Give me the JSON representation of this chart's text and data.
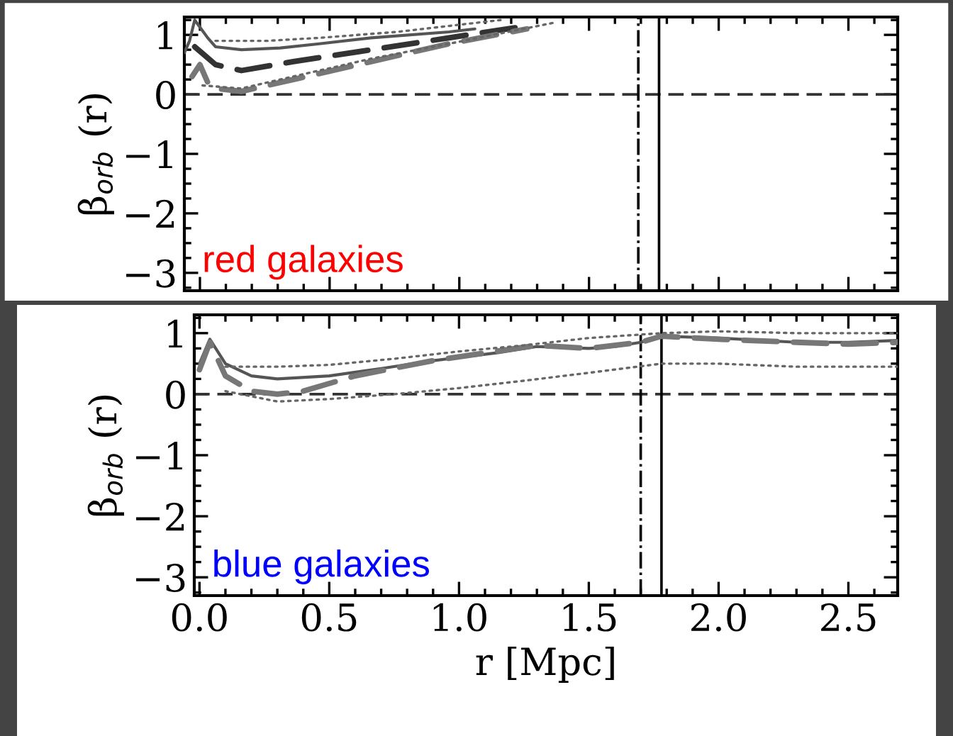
{
  "chart_data": [
    {
      "type": "line",
      "ylabel": "β$_{orb}$ (r)",
      "xlim": [
        -0.06,
        2.69
      ],
      "ylim": [
        -3.3,
        1.3
      ],
      "yticks": [
        -3,
        -2,
        -1,
        0,
        1
      ],
      "xticks": [
        0.0,
        0.5,
        1.0,
        1.5,
        2.0,
        2.5
      ],
      "tick_labels": "y",
      "grid": false,
      "legend": false,
      "annotations": [
        "red galaxies"
      ],
      "ref_lines": [
        {
          "axis": "y",
          "value": 0,
          "label": null,
          "color": "#333333",
          "line_style": "dashed"
        },
        {
          "axis": "x",
          "value": 1.69,
          "label": null,
          "color": "#000000",
          "line_style": "dashdot"
        },
        {
          "axis": "x",
          "value": 1.77,
          "label": null,
          "color": "#000000",
          "line_style": "solid"
        }
      ],
      "series": [
        {
          "color": "#555555",
          "line_style": "solid",
          "x": [
            -0.06,
            -0.04,
            -0.02,
            0.03,
            0.06,
            0.16,
            0.31,
            0.46,
            0.66,
            0.96,
            1.06
          ],
          "values": [
            0.7,
            0.9,
            1.25,
            0.95,
            0.8,
            0.75,
            0.78,
            0.85,
            0.95,
            1.05,
            1.1
          ]
        },
        {
          "color": "#333333",
          "line_style": "dashed",
          "x": [
            -0.02,
            0.02,
            0.06,
            0.16,
            0.36,
            0.66,
            0.96,
            1.26
          ],
          "values": [
            0.8,
            0.65,
            0.5,
            0.4,
            0.55,
            0.75,
            0.95,
            1.15
          ]
        },
        {
          "color": "#777777",
          "line_style": "dashed",
          "x": [
            -0.03,
            0.0,
            0.03,
            0.06,
            0.16,
            0.36,
            0.66,
            0.96,
            1.26
          ],
          "values": [
            0.3,
            0.5,
            0.2,
            0.1,
            0.05,
            0.25,
            0.55,
            0.85,
            1.1
          ]
        },
        {
          "color": "#666666",
          "line_style": "dotted",
          "x": [
            0.06,
            0.26,
            0.46,
            0.76,
            0.96,
            1.16
          ],
          "values": [
            0.9,
            0.9,
            0.95,
            1.05,
            1.15,
            1.25
          ]
        },
        {
          "color": "#666666",
          "line_style": "dotted",
          "x": [
            0.01,
            0.16,
            0.36,
            0.66,
            0.96,
            1.36
          ],
          "values": [
            0.15,
            0.1,
            0.3,
            0.6,
            0.85,
            1.2
          ]
        }
      ]
    },
    {
      "type": "line",
      "ylabel": "β$_{orb}$ (r)",
      "xlabel": "r [Mpc]",
      "xlim": [
        -0.02,
        2.69
      ],
      "ylim": [
        -3.3,
        1.3
      ],
      "yticks": [
        -3,
        -2,
        -1,
        0,
        1
      ],
      "xticks": [
        {
          "value": 0.0,
          "label": "0.0"
        },
        {
          "value": 0.5,
          "label": "0.5"
        },
        {
          "value": 1.0,
          "label": "1.0"
        },
        {
          "value": 1.5,
          "label": "1.5"
        },
        {
          "value": 2.0,
          "label": "2.0"
        },
        {
          "value": 2.5,
          "label": "2.5"
        }
      ],
      "grid": false,
      "legend": false,
      "annotations": [
        "blue galaxies"
      ],
      "ref_lines": [
        {
          "axis": "y",
          "value": 0,
          "label": null,
          "color": "#333333",
          "line_style": "dashed"
        },
        {
          "axis": "x",
          "value": 1.7,
          "label": null,
          "color": "#000000",
          "line_style": "dashdot"
        },
        {
          "axis": "x",
          "value": 1.78,
          "label": null,
          "color": "#000000",
          "line_style": "solid"
        }
      ],
      "series": [
        {
          "color": "#555555",
          "line_style": "solid",
          "x": [
            0.0,
            0.02,
            0.04,
            0.07,
            0.1,
            0.2,
            0.3,
            0.5,
            0.7,
            0.9,
            1.0,
            1.15,
            1.3,
            1.5,
            1.6,
            1.7,
            1.78,
            2.0,
            2.3,
            2.5,
            2.69
          ],
          "values": [
            0.5,
            0.7,
            0.9,
            0.7,
            0.5,
            0.3,
            0.25,
            0.3,
            0.42,
            0.55,
            0.6,
            0.68,
            0.78,
            0.75,
            0.78,
            0.85,
            0.95,
            0.92,
            0.85,
            0.85,
            0.88
          ]
        },
        {
          "color": "#777777",
          "line_style": "dashed",
          "x": [
            0.0,
            0.04,
            0.1,
            0.2,
            0.3,
            0.4,
            0.6,
            0.9,
            1.3,
            1.5,
            1.7,
            1.78,
            2.0,
            2.3,
            2.5,
            2.69
          ],
          "values": [
            0.4,
            0.85,
            0.3,
            0.05,
            0.0,
            0.05,
            0.3,
            0.55,
            0.8,
            0.75,
            0.85,
            0.95,
            0.9,
            0.85,
            0.82,
            0.85
          ]
        },
        {
          "color": "#666666",
          "line_style": "dotted",
          "x": [
            0.1,
            0.3,
            0.5,
            0.75,
            1.0,
            1.25,
            1.5,
            1.78,
            2.0,
            2.3,
            2.69
          ],
          "values": [
            0.45,
            0.45,
            0.48,
            0.58,
            0.7,
            0.8,
            0.92,
            1.0,
            1.03,
            1.0,
            1.0
          ]
        },
        {
          "color": "#666666",
          "line_style": "dotted",
          "x": [
            0.1,
            0.3,
            0.5,
            0.75,
            1.0,
            1.25,
            1.5,
            1.78,
            2.0,
            2.3,
            2.69
          ],
          "values": [
            0.05,
            -0.12,
            -0.08,
            0.0,
            0.1,
            0.22,
            0.35,
            0.5,
            0.5,
            0.45,
            0.45
          ]
        }
      ]
    }
  ]
}
